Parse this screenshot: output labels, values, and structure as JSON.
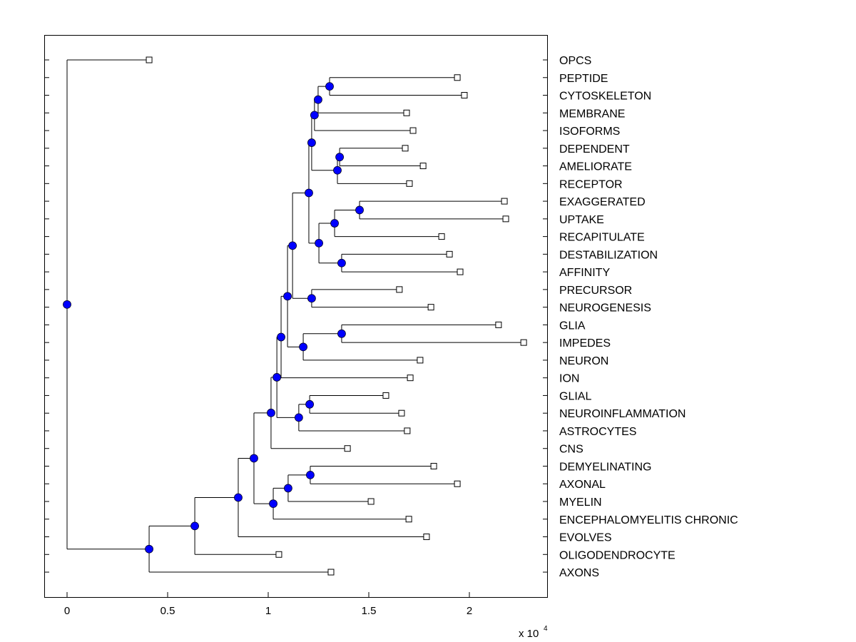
{
  "chart_data": {
    "type": "dendrogram",
    "orientation": "horizontal, root on left, leaves on right",
    "xlim": [
      -0.115,
      2.39
    ],
    "x_ticks": [
      0,
      0.5,
      1,
      1.5,
      2
    ],
    "x_tick_labels": [
      "0",
      "0.5",
      "1",
      "1.5",
      "2"
    ],
    "x_multiplier_label": "x 10",
    "x_multiplier_exponent": "4",
    "grid": false,
    "colors": {
      "node_marker": "#0000ff",
      "leaf_marker": "#ffffff",
      "line": "#000000"
    },
    "tree": {
      "x": 0,
      "children": [
        {
          "label": "OPCS",
          "x": 0.408
        },
        {
          "x": 0.408,
          "children": [
            {
              "x": 0.635,
              "children": [
                {
                  "x": 0.851,
                  "children": [
                    {
                      "x": 0.929,
                      "children": [
                        {
                          "x": 1.014,
                          "children": [
                            {
                              "x": 1.043,
                              "children": [
                                {
                                  "x": 1.064,
                                  "children": [
                                    {
                                      "x": 1.096,
                                      "children": [
                                        {
                                          "x": 1.121,
                                          "children": [
                                            {
                                              "x": 1.202,
                                              "children": [
                                                {
                                                  "x": 1.216,
                                                  "children": [
                                                    {
                                                      "x": 1.23,
                                                      "children": [
                                                        {
                                                          "x": 1.248,
                                                          "children": [
                                                            {
                                                              "x": 1.305,
                                                              "children": [
                                                                {
                                                                  "label": "PEPTIDE",
                                                                  "x": 1.94
                                                                },
                                                                {
                                                                  "label": "CYTOSKELETON",
                                                                  "x": 1.975
                                                                }
                                                              ]
                                                            },
                                                            {
                                                              "label": "MEMBRANE",
                                                              "x": 1.688
                                                            }
                                                          ]
                                                        },
                                                        {
                                                          "label": "ISOFORMS",
                                                          "x": 1.72
                                                        }
                                                      ]
                                                    },
                                                    {
                                                      "x": 1.344,
                                                      "children": [
                                                        {
                                                          "x": 1.355,
                                                          "children": [
                                                            {
                                                              "label": "DEPENDENT",
                                                              "x": 1.681
                                                            },
                                                            {
                                                              "label": "AMELIORATE",
                                                              "x": 1.77
                                                            }
                                                          ]
                                                        },
                                                        {
                                                          "label": "RECEPTOR",
                                                          "x": 1.702
                                                        }
                                                      ]
                                                    }
                                                  ]
                                                },
                                                {
                                                  "x": 1.252,
                                                  "children": [
                                                    {
                                                      "x": 1.33,
                                                      "children": [
                                                        {
                                                          "x": 1.454,
                                                          "children": [
                                                            {
                                                              "label": "EXAGGERATED",
                                                              "x": 2.174
                                                            },
                                                            {
                                                              "label": "UPTAKE",
                                                              "x": 2.181
                                                            }
                                                          ]
                                                        },
                                                        {
                                                          "label": "RECAPITULATE",
                                                          "x": 1.862
                                                        }
                                                      ]
                                                    },
                                                    {
                                                      "x": 1.365,
                                                      "children": [
                                                        {
                                                          "label": "DESTABILIZATION",
                                                          "x": 1.901
                                                        },
                                                        {
                                                          "label": "AFFINITY",
                                                          "x": 1.954
                                                        }
                                                      ]
                                                    }
                                                  ]
                                                }
                                              ]
                                            },
                                            {
                                              "x": 1.216,
                                              "children": [
                                                {
                                                  "label": "PRECURSOR",
                                                  "x": 1.652
                                                },
                                                {
                                                  "label": "NEUROGENESIS",
                                                  "x": 1.809
                                                }
                                              ]
                                            }
                                          ]
                                        },
                                        {
                                          "x": 1.174,
                                          "children": [
                                            {
                                              "x": 1.365,
                                              "children": [
                                                {
                                                  "label": "GLIA",
                                                  "x": 2.145
                                                },
                                                {
                                                  "label": "IMPEDES",
                                                  "x": 2.27
                                                }
                                              ]
                                            },
                                            {
                                              "label": "NEURON",
                                              "x": 1.755
                                            }
                                          ]
                                        }
                                      ]
                                    },
                                    {
                                      "label": "ION",
                                      "x": 1.706
                                    }
                                  ]
                                },
                                {
                                  "x": 1.152,
                                  "children": [
                                    {
                                      "x": 1.206,
                                      "children": [
                                        {
                                          "label": "GLIAL",
                                          "x": 1.585
                                        },
                                        {
                                          "label": "NEUROINFLAMMATION",
                                          "x": 1.663
                                        }
                                      ]
                                    },
                                    {
                                      "label": "ASTROCYTES",
                                      "x": 1.691
                                    }
                                  ]
                                }
                              ]
                            },
                            {
                              "label": "CNS",
                              "x": 1.394
                            }
                          ]
                        },
                        {
                          "x": 1.025,
                          "children": [
                            {
                              "x": 1.099,
                              "children": [
                                {
                                  "x": 1.209,
                                  "children": [
                                    {
                                      "label": "DEMYELINATING",
                                      "x": 1.823
                                    },
                                    {
                                      "label": "AXONAL",
                                      "x": 1.94
                                    }
                                  ]
                                },
                                {
                                  "label": "MYELIN",
                                  "x": 1.511
                                }
                              ]
                            },
                            {
                              "label": "ENCEPHALOMYELITIS CHRONIC",
                              "x": 1.699
                            }
                          ]
                        }
                      ]
                    },
                    {
                      "label": "EVOLVES",
                      "x": 1.787
                    }
                  ]
                },
                {
                  "label": "OLIGODENDROCYTE",
                  "x": 1.053
                }
              ]
            },
            {
              "label": "AXONS",
              "x": 1.312
            }
          ]
        }
      ]
    }
  }
}
